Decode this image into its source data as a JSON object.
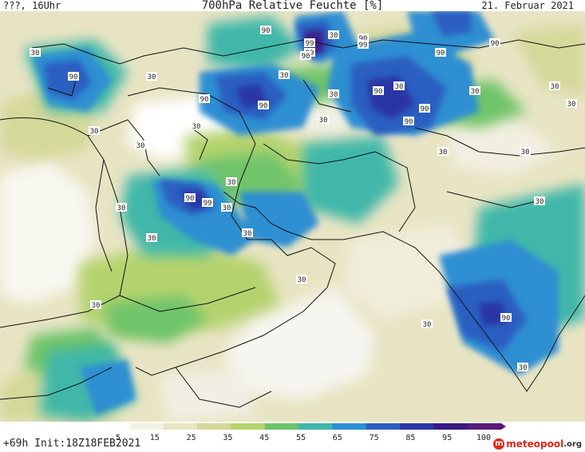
{
  "header": {
    "run_label": "???, 16Uhr",
    "title": "700hPa Relative Feuchte [%]",
    "date": "21. Februar 2021"
  },
  "footer": {
    "init_label": "+69h  Init:18Z18FEB2021",
    "brand_main": "meteopool",
    "brand_tld": ".org"
  },
  "colorbar": {
    "ticks": [
      "5",
      "15",
      "25",
      "35",
      "45",
      "55",
      "65",
      "75",
      "85",
      "95",
      "100"
    ],
    "colors": [
      "#ffffff",
      "#f3f1e3",
      "#e8e4c3",
      "#d4d99a",
      "#b4d36e",
      "#6fc46a",
      "#3fb7a9",
      "#2f8fd2",
      "#2a5fc1",
      "#2b35a5",
      "#3b1a84",
      "#5a1a78"
    ]
  },
  "contour_labels": [
    {
      "text": "90"
    },
    {
      "text": "99"
    },
    {
      "text": "90"
    },
    {
      "text": "99"
    },
    {
      "text": "99"
    },
    {
      "text": "90"
    },
    {
      "text": "30"
    },
    {
      "text": "30"
    },
    {
      "text": "90"
    },
    {
      "text": "90"
    },
    {
      "text": "90"
    },
    {
      "text": "90"
    },
    {
      "text": "30"
    },
    {
      "text": "90"
    },
    {
      "text": "90"
    },
    {
      "text": "30"
    },
    {
      "text": "90"
    },
    {
      "text": "90"
    },
    {
      "text": "30"
    },
    {
      "text": "30"
    },
    {
      "text": "30"
    },
    {
      "text": "30"
    },
    {
      "text": "30"
    },
    {
      "text": "30"
    },
    {
      "text": "30"
    },
    {
      "text": "90"
    },
    {
      "text": "99"
    },
    {
      "text": "30"
    },
    {
      "text": "30"
    },
    {
      "text": "30"
    },
    {
      "text": "30"
    },
    {
      "text": "30"
    },
    {
      "text": "30"
    },
    {
      "text": "30"
    },
    {
      "text": "30"
    },
    {
      "text": "30"
    },
    {
      "text": "30"
    },
    {
      "text": "30"
    },
    {
      "text": "90"
    },
    {
      "text": "30"
    },
    {
      "text": "30"
    },
    {
      "text": "30"
    }
  ]
}
